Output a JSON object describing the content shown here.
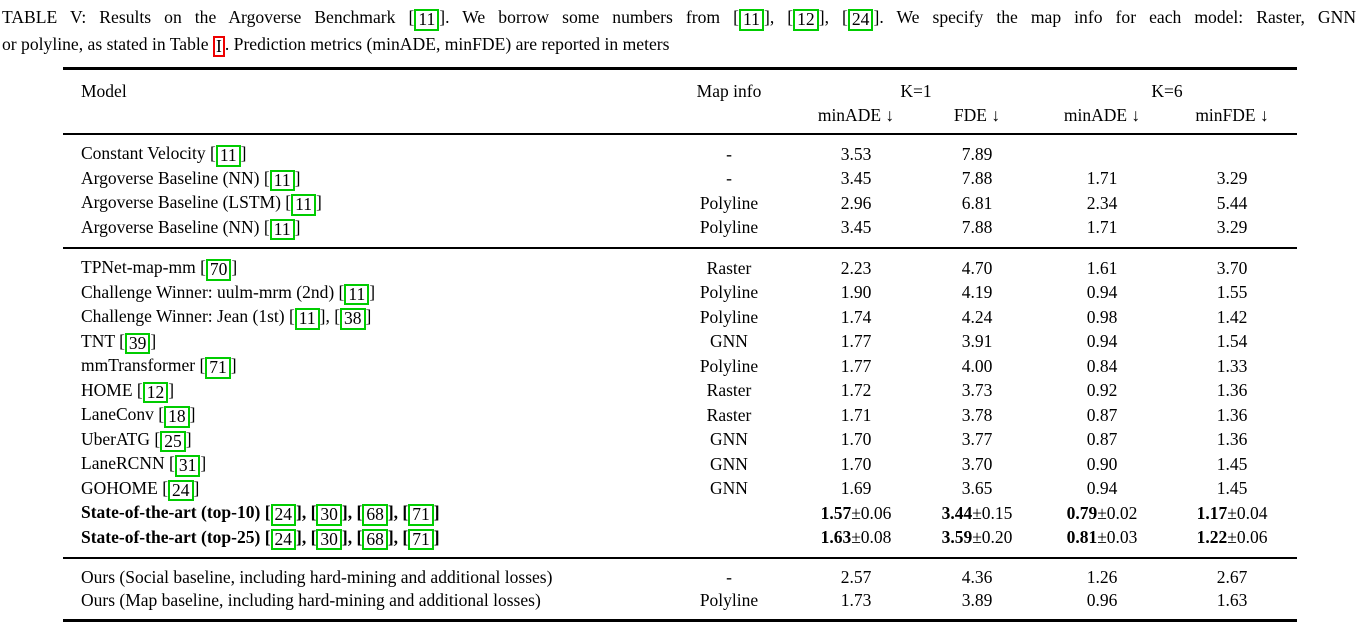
{
  "colors": {
    "citation_box": "#00cc00",
    "reference_box": "#ee0000"
  },
  "caption": {
    "lines": [
      [
        {
          "text": "TABLE V: Results on the Argoverse Benchmark "
        },
        {
          "cite": "11"
        },
        {
          "text": ". We borrow some numbers from "
        },
        {
          "cite": "11"
        },
        {
          "text": ", "
        },
        {
          "cite": "12"
        },
        {
          "text": ", "
        },
        {
          "cite": "24"
        },
        {
          "text": ". We specify the map info for each model: Raster, GNN"
        }
      ],
      [
        {
          "text": "or polyline, as stated in Table "
        },
        {
          "ref": "I"
        },
        {
          "text": ". Prediction metrics (minADE, minFDE) are reported in meters"
        }
      ]
    ]
  },
  "table": {
    "header": {
      "model": "Model",
      "map_info": "Map info",
      "k1": "K=1",
      "k6": "K=6",
      "metrics": [
        "minADE ↓",
        "FDE ↓",
        "minADE ↓",
        "minFDE ↓"
      ]
    },
    "groups": [
      {
        "rows": [
          {
            "model": [
              {
                "text": "Constant Velocity "
              },
              {
                "cite": "11"
              }
            ],
            "bold": false,
            "map": "-",
            "values": [
              "3.53",
              "7.89",
              "",
              ""
            ]
          },
          {
            "model": [
              {
                "text": "Argoverse Baseline (NN) "
              },
              {
                "cite": "11"
              }
            ],
            "bold": false,
            "map": "-",
            "values": [
              "3.45",
              "7.88",
              "1.71",
              "3.29"
            ]
          },
          {
            "model": [
              {
                "text": "Argoverse Baseline (LSTM) "
              },
              {
                "cite": "11"
              }
            ],
            "bold": false,
            "map": "Polyline",
            "values": [
              "2.96",
              "6.81",
              "2.34",
              "5.44"
            ]
          },
          {
            "model": [
              {
                "text": "Argoverse Baseline (NN) "
              },
              {
                "cite": "11"
              }
            ],
            "bold": false,
            "map": "Polyline",
            "values": [
              "3.45",
              "7.88",
              "1.71",
              "3.29"
            ]
          }
        ]
      },
      {
        "rows": [
          {
            "model": [
              {
                "text": "TPNet-map-mm "
              },
              {
                "cite": "70"
              }
            ],
            "bold": false,
            "map": "Raster",
            "values": [
              "2.23",
              "4.70",
              "1.61",
              "3.70"
            ]
          },
          {
            "model": [
              {
                "text": "Challenge Winner: uulm-mrm (2nd) "
              },
              {
                "cite": "11"
              }
            ],
            "bold": false,
            "map": "Polyline",
            "values": [
              "1.90",
              "4.19",
              "0.94",
              "1.55"
            ]
          },
          {
            "model": [
              {
                "text": "Challenge Winner: Jean (1st) "
              },
              {
                "cite": "11"
              },
              {
                "text": ", "
              },
              {
                "cite": "38"
              }
            ],
            "bold": false,
            "map": "Polyline",
            "values": [
              "1.74",
              "4.24",
              "0.98",
              "1.42"
            ]
          },
          {
            "model": [
              {
                "text": "TNT "
              },
              {
                "cite": "39"
              }
            ],
            "bold": false,
            "map": "GNN",
            "values": [
              "1.77",
              "3.91",
              "0.94",
              "1.54"
            ]
          },
          {
            "model": [
              {
                "text": "mmTransformer "
              },
              {
                "cite": "71"
              }
            ],
            "bold": false,
            "map": "Polyline",
            "values": [
              "1.77",
              "4.00",
              "0.84",
              "1.33"
            ]
          },
          {
            "model": [
              {
                "text": "HOME "
              },
              {
                "cite": "12"
              }
            ],
            "bold": false,
            "map": "Raster",
            "values": [
              "1.72",
              "3.73",
              "0.92",
              "1.36"
            ]
          },
          {
            "model": [
              {
                "text": "LaneConv "
              },
              {
                "cite": "18"
              }
            ],
            "bold": false,
            "map": "Raster",
            "values": [
              "1.71",
              "3.78",
              "0.87",
              "1.36"
            ]
          },
          {
            "model": [
              {
                "text": "UberATG "
              },
              {
                "cite": "25"
              }
            ],
            "bold": false,
            "map": "GNN",
            "values": [
              "1.70",
              "3.77",
              "0.87",
              "1.36"
            ]
          },
          {
            "model": [
              {
                "text": "LaneRCNN "
              },
              {
                "cite": "31"
              }
            ],
            "bold": false,
            "map": "GNN",
            "values": [
              "1.70",
              "3.70",
              "0.90",
              "1.45"
            ]
          },
          {
            "model": [
              {
                "text": "GOHOME "
              },
              {
                "cite": "24"
              }
            ],
            "bold": false,
            "map": "GNN",
            "values": [
              "1.69",
              "3.65",
              "0.94",
              "1.45"
            ]
          },
          {
            "model": [
              {
                "text": "State-of-the-art (top-10) "
              },
              {
                "cite": "24"
              },
              {
                "text": ", "
              },
              {
                "cite": "30"
              },
              {
                "text": ", "
              },
              {
                "cite": "68"
              },
              {
                "text": ", "
              },
              {
                "cite": "71"
              }
            ],
            "bold": true,
            "map": "",
            "values": [
              {
                "b": "1.57",
                "pm": "±0.06"
              },
              {
                "b": "3.44",
                "pm": "±0.15"
              },
              {
                "b": "0.79",
                "pm": "±0.02"
              },
              {
                "b": "1.17",
                "pm": "±0.04"
              }
            ]
          },
          {
            "model": [
              {
                "text": "State-of-the-art (top-25) "
              },
              {
                "cite": "24"
              },
              {
                "text": ", "
              },
              {
                "cite": "30"
              },
              {
                "text": ", "
              },
              {
                "cite": "68"
              },
              {
                "text": ", "
              },
              {
                "cite": "71"
              }
            ],
            "bold": true,
            "map": "",
            "values": [
              {
                "b": "1.63",
                "pm": "±0.08"
              },
              {
                "b": "3.59",
                "pm": "±0.20"
              },
              {
                "b": "0.81",
                "pm": "±0.03"
              },
              {
                "b": "1.22",
                "pm": "±0.06"
              }
            ]
          }
        ]
      },
      {
        "rows": [
          {
            "model": [
              {
                "text": "Ours (Social baseline, including hard-mining and additional losses)"
              }
            ],
            "bold": false,
            "map": "-",
            "values": [
              "2.57",
              "4.36",
              "1.26",
              "2.67"
            ]
          },
          {
            "model": [
              {
                "text": "Ours (Map baseline, including hard-mining and additional losses)"
              }
            ],
            "bold": false,
            "map": "Polyline",
            "values": [
              "1.73",
              "3.89",
              "0.96",
              "1.63"
            ]
          }
        ]
      }
    ]
  }
}
